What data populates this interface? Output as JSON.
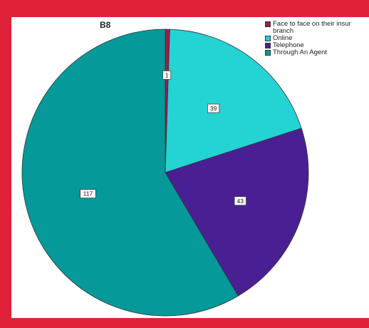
{
  "frame_color": "#e0213a",
  "chart_data": {
    "type": "pie",
    "title": "B8",
    "slices": [
      {
        "label": "Face to face on their insur\nbranch",
        "value": 1,
        "color": "#a3194b"
      },
      {
        "label": "Online",
        "value": 39,
        "color": "#24d3d3"
      },
      {
        "label": "Telephone",
        "value": 43,
        "color": "#4b1f94"
      },
      {
        "label": "Through An Agent",
        "value": 117,
        "color": "#069999"
      }
    ],
    "legend_position": "top-right"
  }
}
